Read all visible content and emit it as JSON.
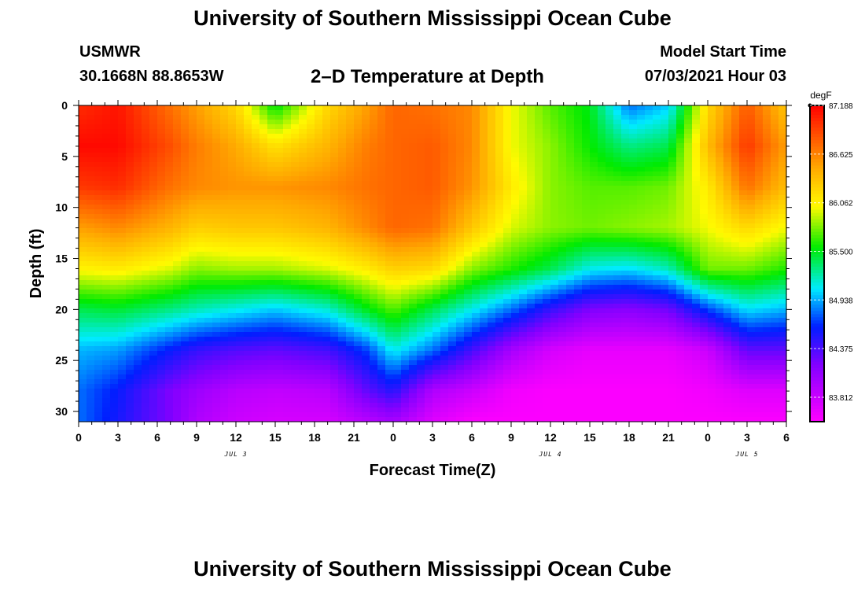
{
  "header": {
    "title": "University of Southern Mississippi Ocean Cube",
    "station": "USMWR",
    "coordinates": "30.1668N  88.8653W",
    "plot_title": "2–D Temperature at Depth",
    "start_label": "Model Start Time",
    "start_value": "07/03/2021 Hour 03"
  },
  "footer": {
    "title": "University of Southern Mississippi Ocean Cube"
  },
  "chart_data": {
    "type": "heatmap",
    "xlabel": "Forecast Time(Z)",
    "ylabel": "Depth (ft)",
    "xlim": [
      0,
      54
    ],
    "ylim": [
      31,
      0
    ],
    "x_ticks": [
      0,
      3,
      6,
      9,
      12,
      15,
      18,
      21,
      24,
      27,
      30,
      33,
      36,
      39,
      42,
      45,
      48,
      51,
      54
    ],
    "x_tick_labels": [
      "0",
      "3",
      "6",
      "9",
      "12",
      "15",
      "18",
      "21",
      "0",
      "3",
      "6",
      "9",
      "12",
      "15",
      "18",
      "21",
      "0",
      "3",
      "6"
    ],
    "y_ticks": [
      0,
      5,
      10,
      15,
      20,
      25,
      30
    ],
    "y_tick_labels": [
      "0",
      "5",
      "10",
      "15",
      "20",
      "25",
      "30"
    ],
    "date_labels": [
      {
        "x": 12,
        "text": "JUL 3"
      },
      {
        "x": 36,
        "text": "JUL 4"
      },
      {
        "x": 51,
        "text": "JUL 5"
      }
    ],
    "colorbar": {
      "unit": "degF",
      "min": 83.53,
      "max": 87.188,
      "tick_values": [
        87.188,
        86.625,
        86.062,
        85.5,
        84.938,
        84.375,
        83.812
      ],
      "tick_labels": [
        "87.188",
        "86.625",
        "86.062",
        "85.500",
        "84.938",
        "84.375",
        "83.812"
      ]
    },
    "profile_x": [
      0,
      3,
      7,
      9,
      12,
      15,
      19,
      22,
      24,
      27,
      30,
      33,
      36,
      39,
      42,
      45,
      48,
      51,
      54
    ],
    "depth_y": [
      0,
      4,
      8,
      12,
      16,
      20,
      24,
      28,
      31
    ],
    "temperature": [
      [
        87.0,
        87.15,
        86.95,
        86.5,
        86.05,
        85.4,
        84.95,
        84.8,
        84.8
      ],
      [
        87.1,
        87.15,
        87.0,
        86.6,
        86.1,
        85.45,
        84.9,
        84.6,
        84.55
      ],
      [
        86.7,
        86.85,
        86.7,
        86.4,
        85.95,
        85.3,
        84.6,
        84.2,
        84.2
      ],
      [
        86.5,
        86.65,
        86.6,
        86.25,
        85.8,
        85.2,
        84.45,
        84.05,
        83.95
      ],
      [
        86.2,
        86.45,
        86.55,
        86.3,
        85.85,
        85.1,
        84.35,
        83.9,
        83.8
      ],
      [
        85.5,
        86.15,
        86.55,
        86.3,
        85.85,
        85.0,
        84.3,
        83.85,
        83.75
      ],
      [
        86.2,
        86.4,
        86.6,
        86.4,
        85.95,
        85.15,
        84.4,
        83.9,
        83.75
      ],
      [
        86.5,
        86.65,
        86.7,
        86.6,
        86.1,
        85.5,
        84.7,
        84.3,
        83.9
      ],
      [
        86.75,
        86.75,
        86.75,
        86.75,
        86.25,
        85.7,
        85.1,
        84.5,
        84.0
      ],
      [
        86.7,
        86.8,
        86.8,
        86.7,
        86.2,
        85.4,
        84.8,
        83.95,
        83.7
      ],
      [
        86.6,
        86.6,
        86.55,
        86.3,
        85.8,
        85.1,
        84.4,
        83.8,
        83.55
      ],
      [
        86.0,
        86.0,
        86.1,
        85.95,
        85.6,
        84.8,
        84.0,
        83.6,
        83.55
      ],
      [
        85.7,
        85.8,
        85.8,
        85.8,
        85.4,
        84.45,
        83.75,
        83.55,
        83.55
      ],
      [
        85.5,
        85.55,
        85.7,
        85.75,
        85.1,
        84.2,
        83.65,
        83.55,
        83.55
      ],
      [
        84.8,
        85.3,
        85.7,
        85.8,
        85.05,
        84.15,
        83.65,
        83.55,
        83.55
      ],
      [
        85.0,
        85.4,
        85.75,
        85.85,
        85.2,
        84.25,
        83.65,
        83.55,
        83.55
      ],
      [
        86.2,
        86.35,
        86.1,
        86.0,
        85.75,
        84.7,
        83.8,
        83.6,
        83.55
      ],
      [
        86.8,
        86.95,
        86.7,
        86.2,
        85.75,
        85.05,
        84.3,
        83.7,
        83.55
      ],
      [
        86.3,
        86.5,
        86.35,
        86.0,
        85.6,
        84.95,
        84.3,
        83.7,
        83.55
      ]
    ]
  }
}
